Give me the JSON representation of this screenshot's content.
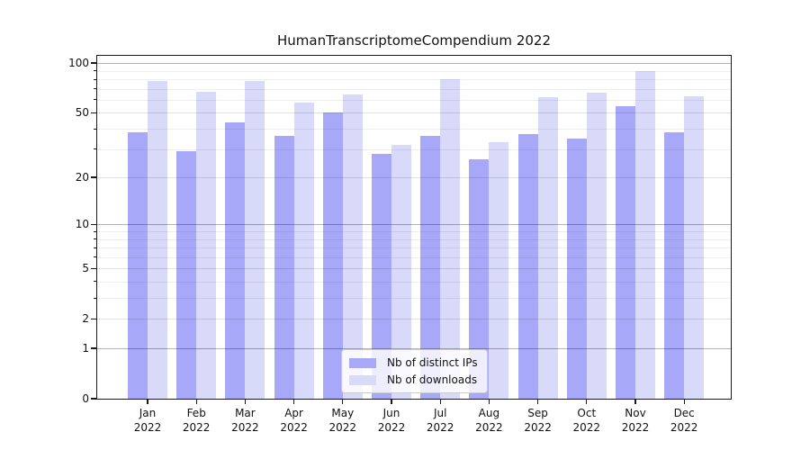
{
  "chart_data": {
    "type": "bar",
    "title": "HumanTranscriptomeCompendium 2022",
    "categories": [
      "Jan",
      "Feb",
      "Mar",
      "Apr",
      "May",
      "Jun",
      "Jul",
      "Aug",
      "Sep",
      "Oct",
      "Nov",
      "Dec"
    ],
    "year_label": "2022",
    "series": [
      {
        "name": "Nb of distinct IPs",
        "color": "#a8a8f8",
        "values": [
          38,
          29,
          44,
          36,
          50,
          28,
          36,
          26,
          37,
          35,
          55,
          38
        ]
      },
      {
        "name": "Nb of downloads",
        "color": "#d9d9f9",
        "values": [
          78,
          67,
          78,
          58,
          65,
          32,
          80,
          33,
          62,
          66,
          90,
          63
        ]
      }
    ],
    "yscale": "log1p",
    "ylim": [
      0,
      111
    ],
    "yticks_labeled": [
      0,
      1,
      2,
      5,
      10,
      20,
      50,
      100
    ],
    "yticks_decade": [
      1,
      10,
      100
    ],
    "yticks_minor": [
      3,
      4,
      6,
      7,
      8,
      9,
      30,
      40,
      60,
      70,
      80,
      90
    ],
    "grid": "both",
    "legend_position": "lower center",
    "background": "#ffffff"
  }
}
